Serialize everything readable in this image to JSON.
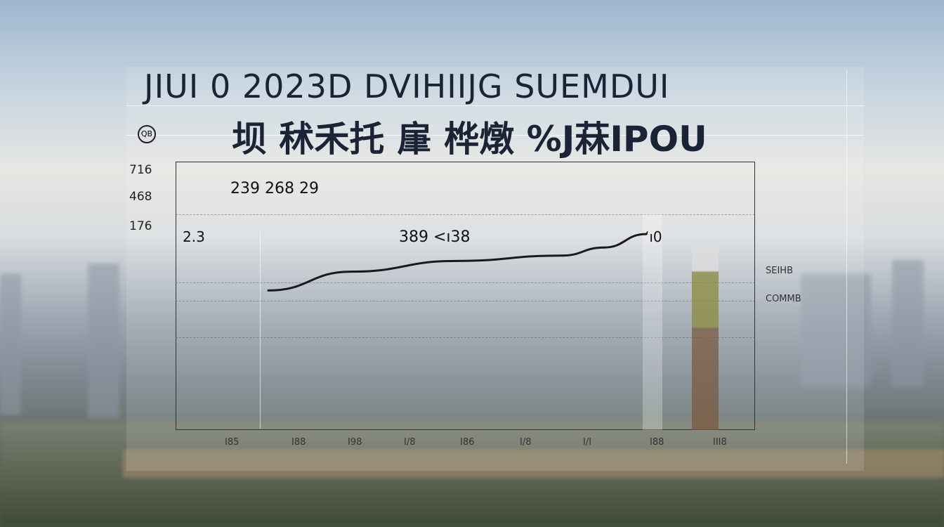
{
  "title": "JIUI 0 2023D DVIHIIJG SUEMDUI",
  "subtitle": "坝 秫禾托 肁 桦燉 %J菻IPOU",
  "logo_text": "QB",
  "colors": {
    "line": "#1a1a1a",
    "text": "#1b2337",
    "bar_olive": "#8a8a3c",
    "bar_brown": "#7a5a40"
  },
  "chart_data": {
    "type": "line",
    "title": "JIUI 0 2023D DVIHIIJG SUEMDUI",
    "subtitle": "坝 秫禾托 肁 桦燉 %J菻IPOU",
    "ytick_labels": [
      "716",
      "468",
      "176"
    ],
    "ylim": [
      0,
      100
    ],
    "grid": true,
    "x": [
      1,
      2,
      3,
      4,
      5,
      6
    ],
    "values": [
      52,
      59,
      63,
      65,
      68,
      73
    ],
    "annotations": [
      "239 268 29",
      "2.3",
      "389 <ı38",
      "ʻı0"
    ],
    "xtick_labels": [
      "I85",
      "I88",
      "I98",
      "I/8",
      "I86",
      "I/8",
      "I/I",
      "I88",
      "III8"
    ],
    "side_labels_right": [
      "SEIHB",
      "COMMB"
    ]
  }
}
